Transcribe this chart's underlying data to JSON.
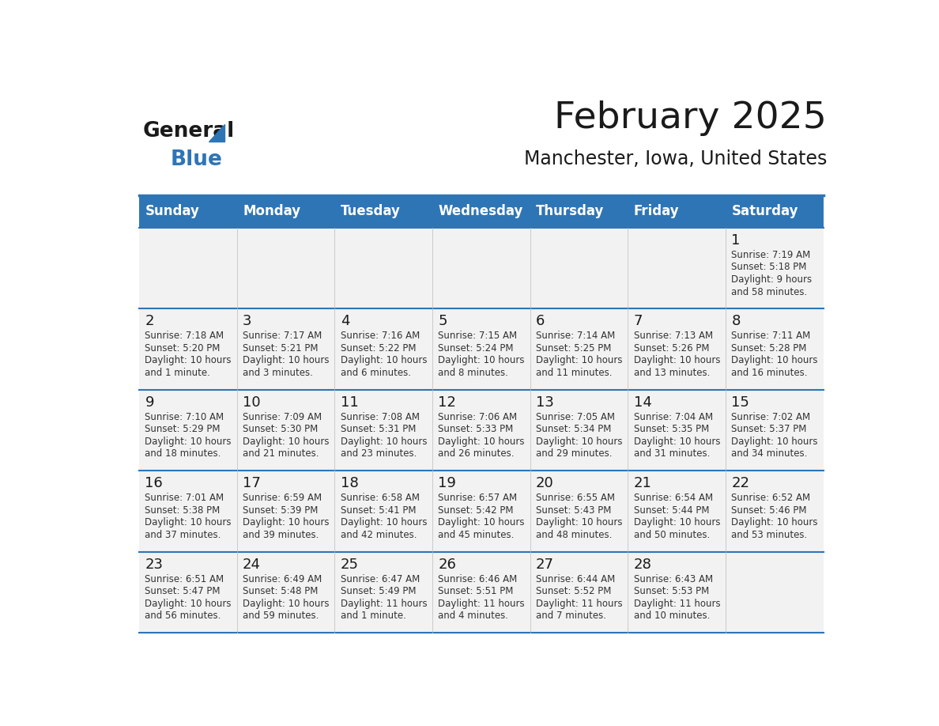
{
  "title": "February 2025",
  "subtitle": "Manchester, Iowa, United States",
  "header_bg": "#2E75B6",
  "header_text_color": "#FFFFFF",
  "cell_bg_light": "#F2F2F2",
  "cell_bg_white": "#FFFFFF",
  "border_color": "#2E75B6",
  "title_color": "#1a1a1a",
  "subtitle_color": "#1a1a1a",
  "day_names": [
    "Sunday",
    "Monday",
    "Tuesday",
    "Wednesday",
    "Thursday",
    "Friday",
    "Saturday"
  ],
  "days_data": [
    {
      "day": 1,
      "col": 6,
      "row": 0,
      "sunrise": "7:19 AM",
      "sunset": "5:18 PM",
      "daylight": "9 hours and 58 minutes."
    },
    {
      "day": 2,
      "col": 0,
      "row": 1,
      "sunrise": "7:18 AM",
      "sunset": "5:20 PM",
      "daylight": "10 hours and 1 minute."
    },
    {
      "day": 3,
      "col": 1,
      "row": 1,
      "sunrise": "7:17 AM",
      "sunset": "5:21 PM",
      "daylight": "10 hours and 3 minutes."
    },
    {
      "day": 4,
      "col": 2,
      "row": 1,
      "sunrise": "7:16 AM",
      "sunset": "5:22 PM",
      "daylight": "10 hours and 6 minutes."
    },
    {
      "day": 5,
      "col": 3,
      "row": 1,
      "sunrise": "7:15 AM",
      "sunset": "5:24 PM",
      "daylight": "10 hours and 8 minutes."
    },
    {
      "day": 6,
      "col": 4,
      "row": 1,
      "sunrise": "7:14 AM",
      "sunset": "5:25 PM",
      "daylight": "10 hours and 11 minutes."
    },
    {
      "day": 7,
      "col": 5,
      "row": 1,
      "sunrise": "7:13 AM",
      "sunset": "5:26 PM",
      "daylight": "10 hours and 13 minutes."
    },
    {
      "day": 8,
      "col": 6,
      "row": 1,
      "sunrise": "7:11 AM",
      "sunset": "5:28 PM",
      "daylight": "10 hours and 16 minutes."
    },
    {
      "day": 9,
      "col": 0,
      "row": 2,
      "sunrise": "7:10 AM",
      "sunset": "5:29 PM",
      "daylight": "10 hours and 18 minutes."
    },
    {
      "day": 10,
      "col": 1,
      "row": 2,
      "sunrise": "7:09 AM",
      "sunset": "5:30 PM",
      "daylight": "10 hours and 21 minutes."
    },
    {
      "day": 11,
      "col": 2,
      "row": 2,
      "sunrise": "7:08 AM",
      "sunset": "5:31 PM",
      "daylight": "10 hours and 23 minutes."
    },
    {
      "day": 12,
      "col": 3,
      "row": 2,
      "sunrise": "7:06 AM",
      "sunset": "5:33 PM",
      "daylight": "10 hours and 26 minutes."
    },
    {
      "day": 13,
      "col": 4,
      "row": 2,
      "sunrise": "7:05 AM",
      "sunset": "5:34 PM",
      "daylight": "10 hours and 29 minutes."
    },
    {
      "day": 14,
      "col": 5,
      "row": 2,
      "sunrise": "7:04 AM",
      "sunset": "5:35 PM",
      "daylight": "10 hours and 31 minutes."
    },
    {
      "day": 15,
      "col": 6,
      "row": 2,
      "sunrise": "7:02 AM",
      "sunset": "5:37 PM",
      "daylight": "10 hours and 34 minutes."
    },
    {
      "day": 16,
      "col": 0,
      "row": 3,
      "sunrise": "7:01 AM",
      "sunset": "5:38 PM",
      "daylight": "10 hours and 37 minutes."
    },
    {
      "day": 17,
      "col": 1,
      "row": 3,
      "sunrise": "6:59 AM",
      "sunset": "5:39 PM",
      "daylight": "10 hours and 39 minutes."
    },
    {
      "day": 18,
      "col": 2,
      "row": 3,
      "sunrise": "6:58 AM",
      "sunset": "5:41 PM",
      "daylight": "10 hours and 42 minutes."
    },
    {
      "day": 19,
      "col": 3,
      "row": 3,
      "sunrise": "6:57 AM",
      "sunset": "5:42 PM",
      "daylight": "10 hours and 45 minutes."
    },
    {
      "day": 20,
      "col": 4,
      "row": 3,
      "sunrise": "6:55 AM",
      "sunset": "5:43 PM",
      "daylight": "10 hours and 48 minutes."
    },
    {
      "day": 21,
      "col": 5,
      "row": 3,
      "sunrise": "6:54 AM",
      "sunset": "5:44 PM",
      "daylight": "10 hours and 50 minutes."
    },
    {
      "day": 22,
      "col": 6,
      "row": 3,
      "sunrise": "6:52 AM",
      "sunset": "5:46 PM",
      "daylight": "10 hours and 53 minutes."
    },
    {
      "day": 23,
      "col": 0,
      "row": 4,
      "sunrise": "6:51 AM",
      "sunset": "5:47 PM",
      "daylight": "10 hours and 56 minutes."
    },
    {
      "day": 24,
      "col": 1,
      "row": 4,
      "sunrise": "6:49 AM",
      "sunset": "5:48 PM",
      "daylight": "10 hours and 59 minutes."
    },
    {
      "day": 25,
      "col": 2,
      "row": 4,
      "sunrise": "6:47 AM",
      "sunset": "5:49 PM",
      "daylight": "11 hours and 1 minute."
    },
    {
      "day": 26,
      "col": 3,
      "row": 4,
      "sunrise": "6:46 AM",
      "sunset": "5:51 PM",
      "daylight": "11 hours and 4 minutes."
    },
    {
      "day": 27,
      "col": 4,
      "row": 4,
      "sunrise": "6:44 AM",
      "sunset": "5:52 PM",
      "daylight": "11 hours and 7 minutes."
    },
    {
      "day": 28,
      "col": 5,
      "row": 4,
      "sunrise": "6:43 AM",
      "sunset": "5:53 PM",
      "daylight": "11 hours and 10 minutes."
    }
  ]
}
